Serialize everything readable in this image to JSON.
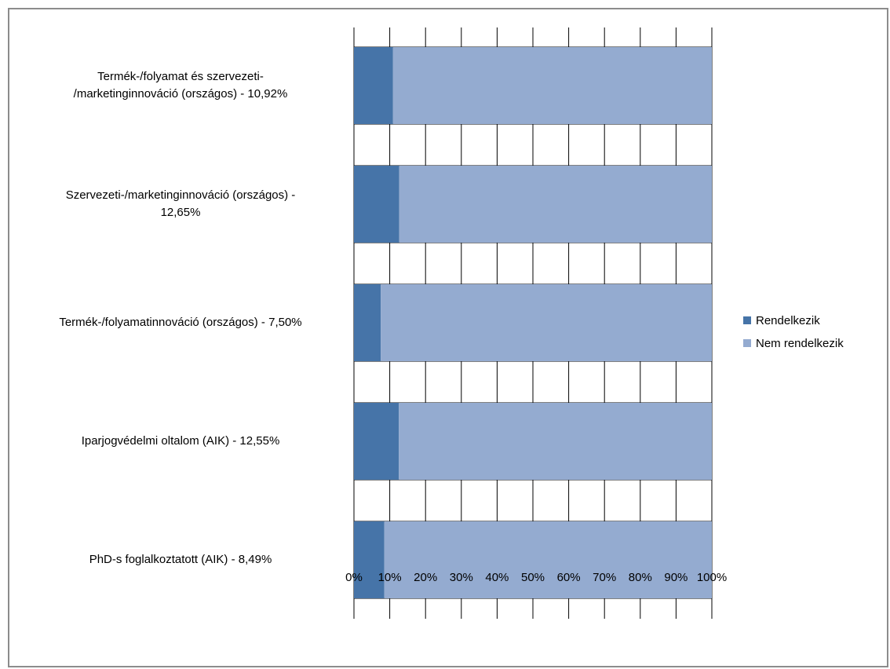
{
  "chart_data": {
    "type": "bar",
    "orientation": "horizontal",
    "stacked": true,
    "percent_stacked": true,
    "categories": [
      "Termék-/folyamat és szervezeti-\n/marketinginnováció (országos) - 10,92%",
      "Szervezeti-/marketinginnováció (országos) -\n12,65%",
      "Termék-/folyamatinnováció  (országos) - 7,50%",
      "Iparjogvédelmi oltalom (AIK) - 12,55%",
      "PhD-s foglalkoztatott  (AIK) - 8,49%"
    ],
    "series": [
      {
        "name": "Rendelkezik",
        "color": "#4674a8",
        "values": [
          10.92,
          12.65,
          7.5,
          12.55,
          8.49
        ]
      },
      {
        "name": "Nem rendelkezik",
        "color": "#94abd0",
        "values": [
          89.08,
          87.35,
          92.5,
          87.45,
          91.51
        ]
      }
    ],
    "xlim": [
      0,
      100
    ],
    "xticks": [
      "0%",
      "10%",
      "20%",
      "30%",
      "40%",
      "50%",
      "60%",
      "70%",
      "80%",
      "90%",
      "100%"
    ],
    "grid": true,
    "legend_position": "right",
    "title": "",
    "xlabel": "",
    "ylabel": ""
  }
}
